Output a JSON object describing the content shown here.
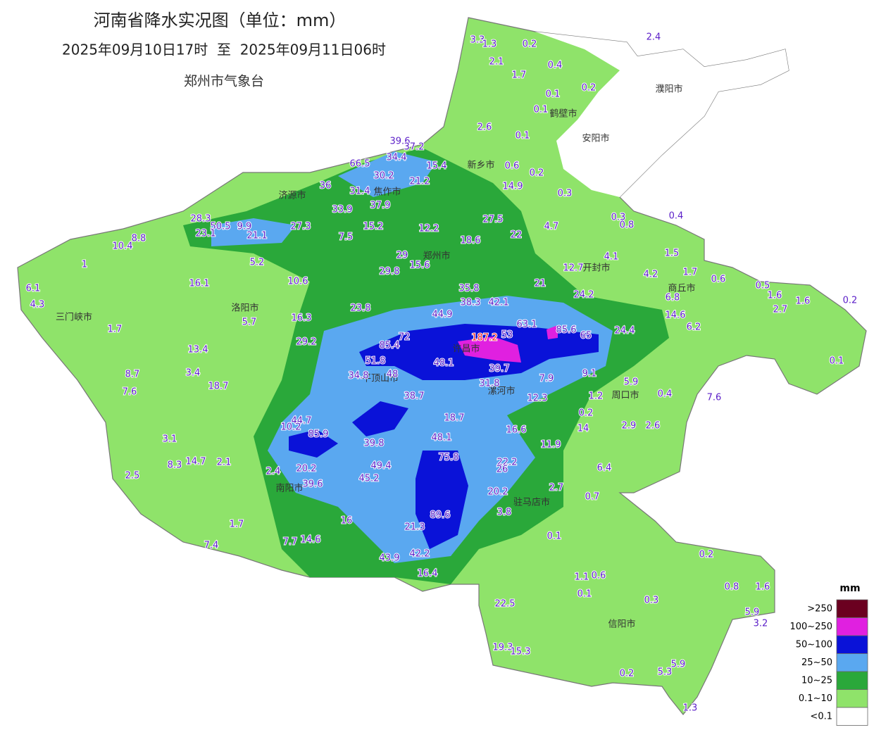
{
  "header": {
    "title": "河南省降水实况图（单位：mm）",
    "period": "2025年09月10日17时  至  2025年09月11日06时",
    "issuer": "郑州市气象台"
  },
  "cities": [
    "濮阳市",
    "鹤壁市",
    "安阳市",
    "新乡市",
    "济源市",
    "焦作市",
    "郑州市",
    "开封市",
    "商丘市",
    "三门峡市",
    "洛阳市",
    "许昌市",
    "平顶山市",
    "漯河市",
    "周口市",
    "南阳市",
    "驻马店市",
    "信阳市"
  ],
  "stations": [
    3.3,
    1.3,
    0.2,
    2.4,
    2.1,
    1.7,
    0.4,
    0.1,
    0.2,
    0.1,
    2.6,
    0.1,
    0.6,
    0.2,
    14.9,
    0.3,
    39.6,
    37.2,
    34.4,
    15.4,
    66.5,
    30.2,
    21.2,
    36,
    31.4,
    37.9,
    33.9,
    27.5,
    0.3,
    0.4,
    0.8,
    28.3,
    27.3,
    15.2,
    12.2,
    22,
    4.7,
    50.5,
    9.9,
    23.1,
    21.1,
    7.5,
    18.6,
    8.8,
    10.4,
    1.5,
    4.1,
    1,
    5.2,
    29,
    15.6,
    12.7,
    4.2,
    1.7,
    0.6,
    29.8,
    16.1,
    10.6,
    21,
    0.5,
    1.6,
    6.1,
    24.2,
    35.8,
    38.3,
    42.1,
    6.8,
    1.6,
    0.2,
    4.3,
    23.8,
    2.7,
    44.9,
    16.3,
    14.6,
    5.7,
    63.1,
    85.6,
    6.2,
    1.7,
    187.2,
    53,
    65,
    24.4,
    72,
    29.2,
    85.4,
    13.4,
    51.8,
    48.1,
    39.7,
    0.1,
    8.7,
    3.4,
    34.8,
    48,
    9.1,
    7.9,
    5.9,
    18.7,
    31.8,
    7.6,
    38.7,
    12.3,
    1.2,
    0.4,
    7.6,
    0.2,
    44.7,
    10.2,
    85.9,
    18.7,
    14,
    2.9,
    2.6,
    16.6,
    3.1,
    48.1,
    39.8,
    11.9,
    8.3,
    14.7,
    2.1,
    75.8,
    22.2,
    26,
    49.4,
    6.4,
    2.4,
    20.2,
    2.5,
    45.2,
    39.6,
    2.7,
    20.2,
    0.7,
    89.6,
    3.8,
    1.7,
    16,
    21.3,
    0.1,
    7.4,
    7.7,
    14.6,
    0.2,
    43.9,
    42.2,
    16.4,
    1.1,
    0.6,
    0.8,
    1.6,
    0.1,
    0.3,
    22.5,
    5.9,
    3.2,
    19.3,
    15.3,
    5.9,
    0.2,
    5.3,
    1.3
  ],
  "legend": {
    "unit": "mm",
    "items": [
      {
        "label": ">250",
        "color": "#6b0020"
      },
      {
        "label": "100~250",
        "color": "#e020e0"
      },
      {
        "label": "50~100",
        "color": "#0a12d8"
      },
      {
        "label": "25~50",
        "color": "#5aa8f0"
      },
      {
        "label": "10~25",
        "color": "#2aa83a"
      },
      {
        "label": "0.1~10",
        "color": "#8fe36a"
      },
      {
        "label": "<0.1",
        "color": "#ffffff"
      }
    ]
  }
}
